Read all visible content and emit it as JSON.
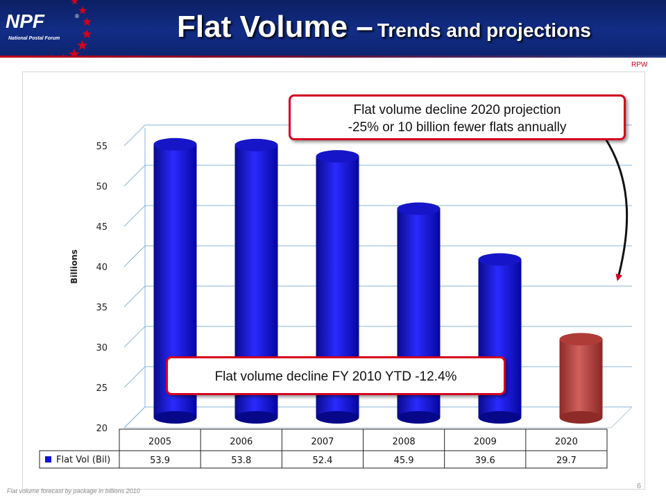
{
  "header": {
    "logo_text": "NPF",
    "logo_subtitle": "National Postal Forum",
    "logo_mark": "®",
    "title_main": "Flat Volume –",
    "title_sub": "Trends and projections",
    "rpw_label": "RPW"
  },
  "colors": {
    "header_bg": "#122d86",
    "bar_historical": "#1010d8",
    "bar_projection": "#c0504d",
    "callout_border": "#d4001f",
    "star": "#d4001f"
  },
  "chart_data": {
    "type": "bar",
    "categories": [
      "2005",
      "2006",
      "2007",
      "2008",
      "2009",
      "2020"
    ],
    "series": [
      {
        "name": "Flat Vol (Bil)",
        "values": [
          53.9,
          53.8,
          52.4,
          45.9,
          39.6,
          29.7
        ]
      }
    ],
    "ylabel": "Billions",
    "ylim": [
      20,
      55
    ],
    "yticks": [
      20,
      25,
      30,
      35,
      40,
      45,
      50,
      55
    ],
    "grid": true,
    "data_table": true,
    "projection_index": 5
  },
  "callouts": {
    "top_line1": "Flat volume decline 2020 projection",
    "top_line2": "-25% or 10 billion fewer flats annually",
    "bottom": "Flat volume decline FY 2010 YTD -12.4%"
  },
  "footer": {
    "note": "Flat volume forecast by package in billions 2010",
    "page": "6"
  }
}
